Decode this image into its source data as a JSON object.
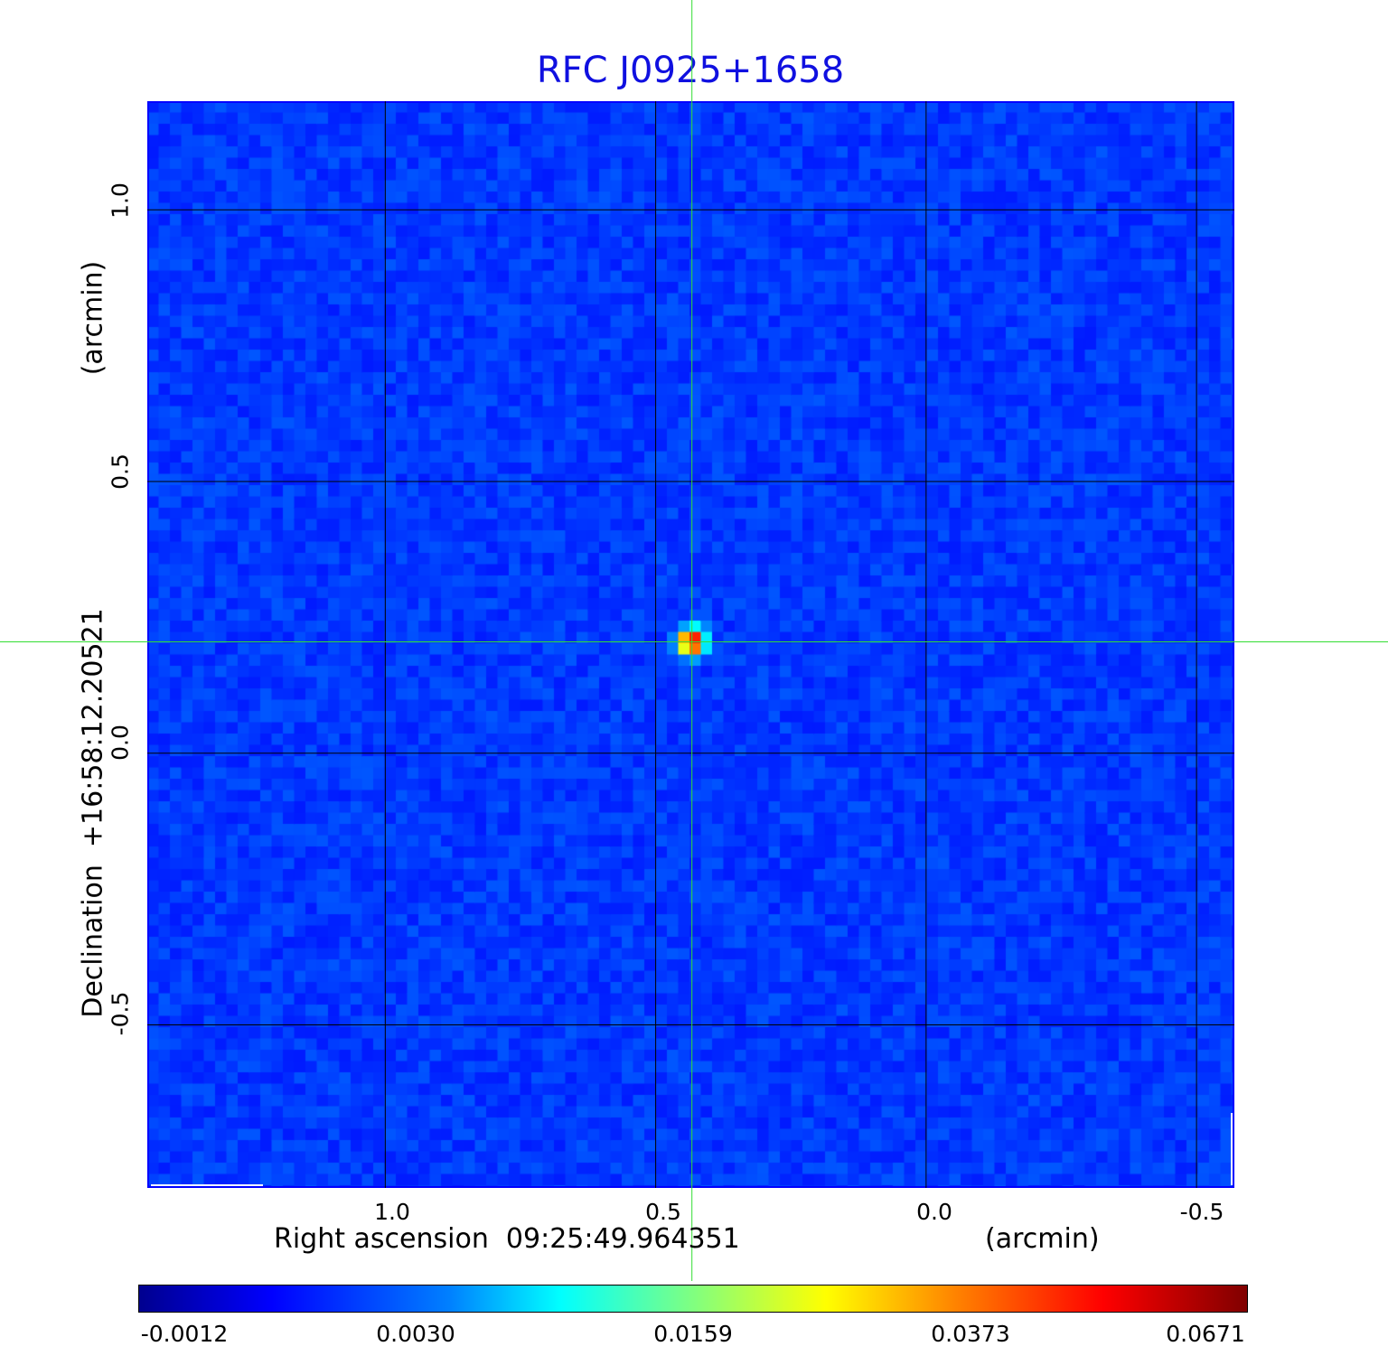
{
  "chart_data": {
    "type": "heatmap",
    "title": "RFC J0925+1658",
    "xlabel": "Right ascension  09:25:49.964351",
    "xunit": "(arcmin)",
    "ylabel": "Declination  +16:58:12.20521",
    "yunit": "(arcmin)",
    "x_ticks": [
      "1.0",
      "0.5",
      "0.0",
      "-0.5"
    ],
    "x_tick_values": [
      1.0,
      0.5,
      0.0,
      -0.5
    ],
    "y_ticks": [
      "1.0",
      "0.5",
      "0.0",
      "-0.5"
    ],
    "y_tick_values": [
      1.0,
      0.5,
      0.0,
      -0.5
    ],
    "xlim": [
      1.44,
      -0.57
    ],
    "ylim": [
      -0.8,
      1.2
    ],
    "grid": true,
    "crosshair": {
      "x": 0.433,
      "y": 0.205
    },
    "colormap": "jet",
    "colorbar_ticks": [
      "-0.0012",
      "0.0030",
      "0.0159",
      "0.0373",
      "0.0671"
    ],
    "value_range": [
      -0.0012,
      0.0671
    ],
    "peak": {
      "x": 0.433,
      "y": 0.205,
      "value": 0.0671
    }
  },
  "colors": {
    "title": "#1010e0",
    "frame": "#0000ff",
    "crosshair": "#33dd33",
    "grid": "#000000"
  }
}
